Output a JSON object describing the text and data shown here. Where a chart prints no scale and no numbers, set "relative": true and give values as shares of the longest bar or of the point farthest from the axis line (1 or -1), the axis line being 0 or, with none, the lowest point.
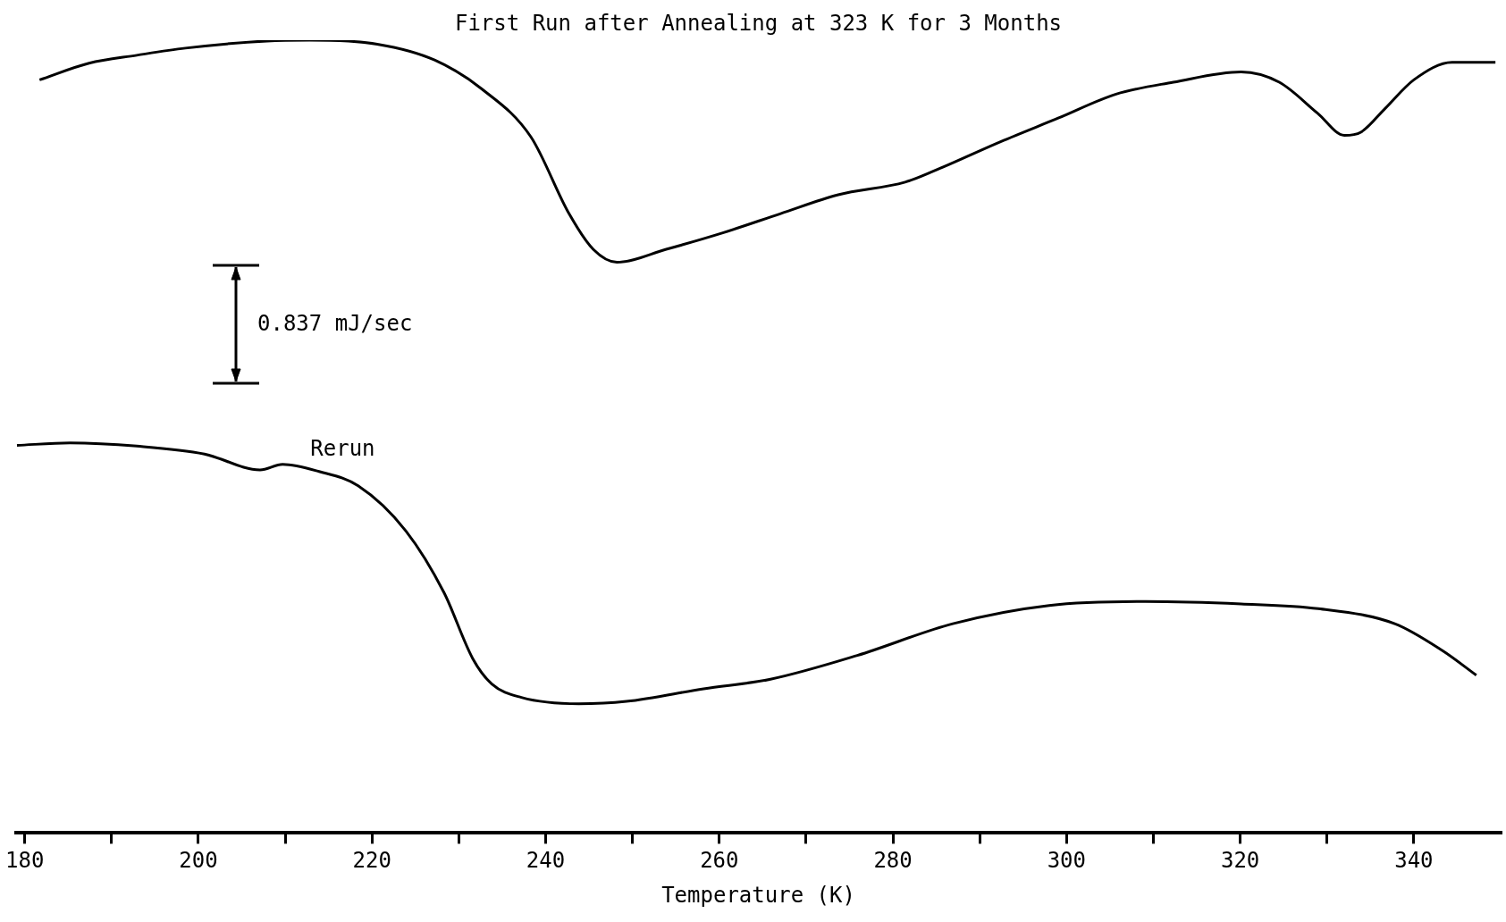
{
  "chart_data": {
    "type": "line",
    "relative": true,
    "xlabel": "Temperature (K)",
    "xlim": [
      179,
      350
    ],
    "xticks": [
      180,
      {
        "value": 190,
        "label": null
      },
      200,
      {
        "value": 210,
        "label": null
      },
      220,
      {
        "value": 230,
        "label": null
      },
      240,
      {
        "value": 250,
        "label": null
      },
      260,
      {
        "value": 270,
        "label": null
      },
      280,
      {
        "value": 290,
        "label": null
      },
      300,
      {
        "value": 310,
        "label": null
      },
      320,
      {
        "value": 330,
        "label": null
      },
      340
    ],
    "grid": false,
    "legend": false,
    "marker": "none",
    "line_style": "solid",
    "annotations": [
      "0.837 mJ/sec"
    ],
    "series": [
      {
        "name": "First Run after Annealing at 323 K for 3 Months",
        "color": "#000000",
        "x": [
          181.7,
          187.4,
          192.9,
          198.5,
          207.9,
          212.8,
          220.6,
          227.2,
          232.7,
          238.3,
          242.7,
          245.5,
          248.2,
          253.8,
          260.4,
          267.0,
          273.7,
          281.4,
          284.7,
          292.4,
          299.1,
          305.7,
          312.3,
          320.1,
          324.5,
          328.9,
          332.0,
          333.9,
          336.7,
          340.0,
          344.4,
          349.4
        ],
        "values": [
          0.95,
          0.971,
          0.981,
          0.99,
          0.999,
          1.0,
          0.995,
          0.975,
          0.938,
          0.878,
          0.781,
          0.736,
          0.72,
          0.736,
          0.757,
          0.781,
          0.805,
          0.821,
          0.835,
          0.872,
          0.902,
          0.932,
          0.947,
          0.96,
          0.947,
          0.908,
          0.88,
          0.884,
          0.914,
          0.95,
          0.972,
          0.972
        ]
      },
      {
        "name": "Rerun",
        "color": "#000000",
        "x": [
          179.1,
          185.2,
          192.9,
          200.7,
          207.1,
          209.7,
          213.9,
          218.4,
          223.9,
          228.3,
          231.6,
          233.8,
          237.2,
          243.8,
          249.3,
          258.2,
          265.9,
          275.9,
          286.9,
          298.0,
          309.1,
          320.1,
          329.0,
          337.8,
          343.3,
          347.2
        ],
        "values": [
          0.489,
          0.492,
          0.488,
          0.478,
          0.458,
          0.465,
          0.456,
          0.438,
          0.381,
          0.303,
          0.22,
          0.188,
          0.171,
          0.163,
          0.166,
          0.182,
          0.194,
          0.224,
          0.264,
          0.287,
          0.292,
          0.289,
          0.283,
          0.264,
          0.23,
          0.199
        ]
      }
    ]
  }
}
